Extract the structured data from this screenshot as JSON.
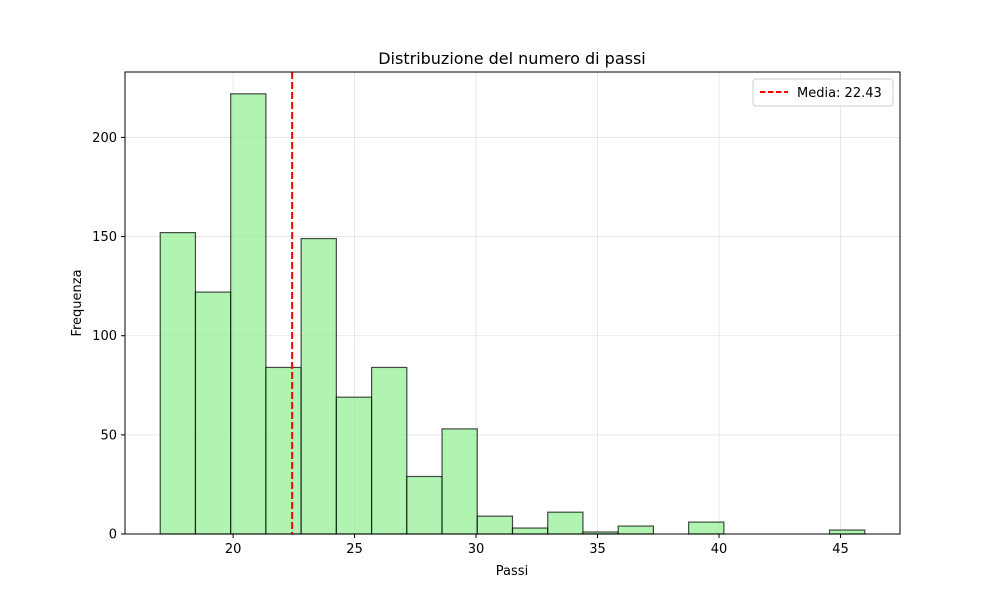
{
  "chart_data": {
    "type": "bar",
    "title": "Distribuzione del numero di passi",
    "xlabel": "Passi",
    "ylabel": "Frequenza",
    "xlim": [
      15.55,
      47.45
    ],
    "ylim": [
      0,
      233
    ],
    "x_ticks": [
      20,
      25,
      30,
      35,
      40,
      45
    ],
    "y_ticks": [
      0,
      50,
      100,
      150,
      200
    ],
    "grid": true,
    "bar_color": "#90ee90",
    "edge_color": "#000000",
    "bins": [
      {
        "x0": 17.0,
        "x1": 18.45,
        "count": 152
      },
      {
        "x0": 18.45,
        "x1": 19.9,
        "count": 122
      },
      {
        "x0": 19.9,
        "x1": 21.35,
        "count": 222
      },
      {
        "x0": 21.35,
        "x1": 22.8,
        "count": 84
      },
      {
        "x0": 22.8,
        "x1": 24.25,
        "count": 149
      },
      {
        "x0": 24.25,
        "x1": 25.7,
        "count": 69
      },
      {
        "x0": 25.7,
        "x1": 27.15,
        "count": 84
      },
      {
        "x0": 27.15,
        "x1": 28.6,
        "count": 29
      },
      {
        "x0": 28.6,
        "x1": 30.05,
        "count": 53
      },
      {
        "x0": 30.05,
        "x1": 31.5,
        "count": 9
      },
      {
        "x0": 31.5,
        "x1": 32.95,
        "count": 3
      },
      {
        "x0": 32.95,
        "x1": 34.4,
        "count": 11
      },
      {
        "x0": 34.4,
        "x1": 35.85,
        "count": 1
      },
      {
        "x0": 35.85,
        "x1": 37.3,
        "count": 4
      },
      {
        "x0": 37.3,
        "x1": 38.75,
        "count": 0
      },
      {
        "x0": 38.75,
        "x1": 40.2,
        "count": 6
      },
      {
        "x0": 40.2,
        "x1": 41.65,
        "count": 0
      },
      {
        "x0": 41.65,
        "x1": 43.1,
        "count": 0
      },
      {
        "x0": 43.1,
        "x1": 44.55,
        "count": 0
      },
      {
        "x0": 44.55,
        "x1": 46.0,
        "count": 2
      }
    ],
    "mean": {
      "value": 22.43,
      "label": "Media: 22.43",
      "color": "#ff0000"
    },
    "legend_position": "top-right"
  }
}
